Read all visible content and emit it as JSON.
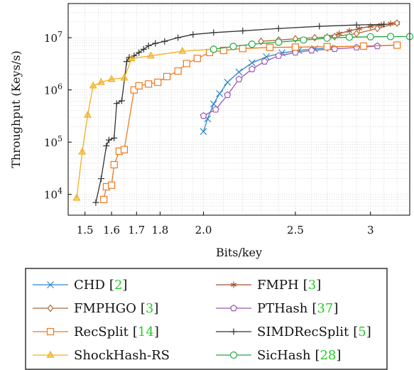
{
  "chart_data": {
    "type": "line",
    "title": "",
    "xlabel": "Bits/key",
    "ylabel": "Throughput (Keys/s)",
    "x_scale": "log",
    "y_scale": "log",
    "xlim": [
      1.44,
      3.3
    ],
    "ylim": [
      4000,
      45000000
    ],
    "x_ticks": [
      {
        "value": 1.5,
        "label": "1.5"
      },
      {
        "value": 1.6,
        "label": "1.6"
      },
      {
        "value": 1.7,
        "label": "1.7"
      },
      {
        "value": 1.8,
        "label": "1.8"
      },
      {
        "value": 2.0,
        "label": "2.0"
      },
      {
        "value": 2.5,
        "label": "2.5"
      },
      {
        "value": 3.0,
        "label": "3"
      }
    ],
    "y_ticks": [
      {
        "value": 10000,
        "base": "10",
        "exp": "4"
      },
      {
        "value": 100000,
        "base": "10",
        "exp": "5"
      },
      {
        "value": 1000000,
        "base": "10",
        "exp": "6"
      },
      {
        "value": 10000000,
        "base": "10",
        "exp": "7"
      }
    ],
    "grid": true,
    "legend_position": "below",
    "series": [
      {
        "name": "CHD",
        "cite": "[2]",
        "color": "#2e86c8",
        "marker": "x",
        "x": [
          2.0,
          2.02,
          2.05,
          2.08,
          2.12,
          2.18,
          2.25,
          2.33,
          2.42,
          2.52,
          2.62,
          2.72
        ],
        "y": [
          160000,
          280000,
          540000,
          850000,
          1400000,
          2200000,
          3300000,
          4300000,
          5100000,
          5700000,
          6100000,
          6300000
        ]
      },
      {
        "name": "FMPH",
        "cite": "[3]",
        "color": "#a0522d",
        "marker": "star",
        "x": [
          2.7,
          2.78,
          2.85,
          2.92,
          3.0,
          3.08,
          3.15,
          3.2
        ],
        "y": [
          10500000,
          12000000,
          13500000,
          15000000,
          16500000,
          17500000,
          18500000,
          19000000
        ]
      },
      {
        "name": "FMPHGO",
        "cite": "[3]",
        "color": "#b06a35",
        "marker": "diamond",
        "x": [
          2.3,
          2.4,
          2.5,
          2.62,
          2.75,
          2.9,
          3.05,
          3.2
        ],
        "y": [
          8500000,
          9000000,
          9500000,
          10000000,
          10500000,
          12000000,
          15000000,
          19000000
        ]
      },
      {
        "name": "PTHash",
        "cite": "[37]",
        "color": "#9b59b6",
        "marker": "pentagon",
        "x": [
          2.0,
          2.06,
          2.12,
          2.18,
          2.25,
          2.32,
          2.4,
          2.5,
          2.6,
          2.75,
          2.9,
          3.05,
          3.2
        ],
        "y": [
          320000,
          420000,
          800000,
          1600000,
          2500000,
          3500000,
          4500000,
          5200000,
          5700000,
          6100000,
          6500000,
          6900000,
          7300000
        ]
      },
      {
        "name": "RecSplit",
        "cite": "[14]",
        "color": "#f07820",
        "marker": "square",
        "x": [
          1.57,
          1.58,
          1.6,
          1.61,
          1.63,
          1.65,
          1.69,
          1.71,
          1.75,
          1.79,
          1.83,
          1.88,
          1.92,
          1.97,
          2.03,
          2.1,
          2.2,
          2.35,
          2.5,
          2.7,
          2.95,
          3.2
        ],
        "y": [
          8000,
          14000,
          15000,
          37000,
          67000,
          72000,
          1000000,
          1200000,
          1300000,
          1400000,
          1800000,
          2300000,
          3200000,
          4000000,
          5200000,
          5700000,
          6200000,
          6500000,
          6600000,
          6700000,
          6900000,
          7200000
        ]
      },
      {
        "name": "SIMDRecSplit",
        "cite": "[5]",
        "color": "#333333",
        "marker": "plus",
        "x": [
          1.54,
          1.56,
          1.58,
          1.59,
          1.61,
          1.62,
          1.64,
          1.66,
          1.67,
          1.69,
          1.71,
          1.73,
          1.75,
          1.78,
          1.82,
          1.88,
          1.95,
          2.05,
          2.2,
          2.4,
          2.65,
          2.9,
          3.1
        ],
        "y": [
          7000,
          20000,
          85000,
          110000,
          120000,
          550000,
          620000,
          3500000,
          4200000,
          4500000,
          5200000,
          6000000,
          7000000,
          7800000,
          8500000,
          10000000,
          11500000,
          12500000,
          13500000,
          15000000,
          16500000,
          17500000,
          18000000
        ]
      },
      {
        "name": "ShockHash-RS",
        "cite": "",
        "color": "#f0b020",
        "marker": "triangle",
        "x": [
          1.47,
          1.49,
          1.51,
          1.53,
          1.56,
          1.6,
          1.65,
          1.68,
          1.76,
          1.9,
          2.05
        ],
        "y": [
          8500,
          65000,
          330000,
          1200000,
          1400000,
          1600000,
          1700000,
          4000000,
          4500000,
          5500000,
          6000000
        ]
      },
      {
        "name": "SicHash",
        "cite": "[28]",
        "color": "#22aa44",
        "marker": "circle",
        "x": [
          2.05,
          2.15,
          2.25,
          2.4,
          2.55,
          2.7,
          2.85,
          3.0,
          3.15,
          3.3
        ],
        "y": [
          6000000,
          6800000,
          7500000,
          8200000,
          9000000,
          9800000,
          10200000,
          10400000,
          10500000,
          10500000
        ]
      }
    ]
  }
}
